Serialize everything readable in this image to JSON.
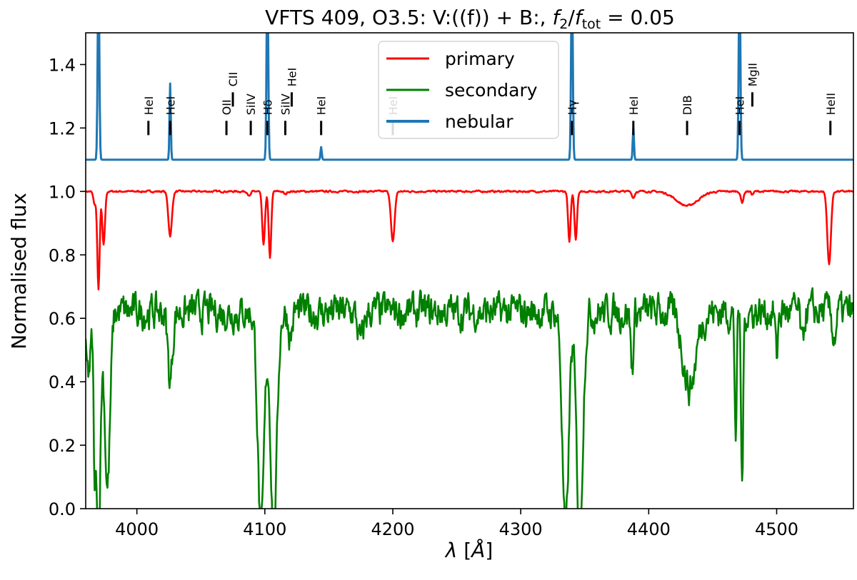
{
  "chart_data": {
    "type": "line",
    "title_parts": [
      "VFTS 409, O3.5: V:((f)) + B:, ",
      "f",
      "2",
      "/",
      "f",
      "tot",
      " = 0.05"
    ],
    "xlabel_parts": [
      "λ",
      " [",
      "Å",
      "]"
    ],
    "ylabel": "Normalised flux",
    "xlim": [
      3960,
      4560
    ],
    "ylim": [
      0.0,
      1.5
    ],
    "xticks": [
      4000,
      4100,
      4200,
      4300,
      4400,
      4500
    ],
    "yticks": [
      0.0,
      0.2,
      0.4,
      0.6,
      0.8,
      1.0,
      1.2,
      1.4
    ],
    "grid": false,
    "legend_position": "top-center",
    "nebular_baseline": 1.1,
    "line_markers": [
      {
        "label": "HeI",
        "x": 4009,
        "y": 1.2
      },
      {
        "label": "HeI",
        "x": 4026,
        "y": 1.2
      },
      {
        "label": "OII",
        "x": 4070,
        "y": 1.2
      },
      {
        "label": "CII",
        "x": 4075,
        "y": 1.29
      },
      {
        "label": "SiIV",
        "x": 4089,
        "y": 1.2
      },
      {
        "label": "Hδ",
        "x": 4102,
        "y": 1.2
      },
      {
        "label": "SiIV",
        "x": 4116,
        "y": 1.2
      },
      {
        "label": "HeI",
        "x": 4121,
        "y": 1.29
      },
      {
        "label": "HeI",
        "x": 4144,
        "y": 1.2
      },
      {
        "label": "HeI",
        "x": 4200,
        "y": 1.2
      },
      {
        "label": "Hγ",
        "x": 4340,
        "y": 1.2
      },
      {
        "label": "HeI",
        "x": 4388,
        "y": 1.2
      },
      {
        "label": "DIB",
        "x": 4430,
        "y": 1.2
      },
      {
        "label": "HeI",
        "x": 4471,
        "y": 1.2
      },
      {
        "label": "MgII",
        "x": 4481,
        "y": 1.29
      },
      {
        "label": "HeII",
        "x": 4542,
        "y": 1.2
      }
    ],
    "series": [
      {
        "name": "primary",
        "color": "#ff0000",
        "continuum": 1.0,
        "noise": 0.002,
        "absorptions": [
          {
            "x": 3967,
            "depth": 0.04,
            "width": 1.5
          },
          {
            "x": 3970,
            "depth": 0.31,
            "width": 1.3
          },
          {
            "x": 3974,
            "depth": 0.17,
            "width": 1.5
          },
          {
            "x": 4026,
            "depth": 0.14,
            "width": 2.0
          },
          {
            "x": 4088,
            "depth": 0.015,
            "width": 1.5
          },
          {
            "x": 4099,
            "depth": 0.17,
            "width": 1.5
          },
          {
            "x": 4104,
            "depth": 0.21,
            "width": 1.4
          },
          {
            "x": 4116,
            "depth": 0.01,
            "width": 1.5
          },
          {
            "x": 4200,
            "depth": 0.16,
            "width": 2.0
          },
          {
            "x": 4338,
            "depth": 0.16,
            "width": 1.4
          },
          {
            "x": 4343,
            "depth": 0.15,
            "width": 1.4
          },
          {
            "x": 4388,
            "depth": 0.02,
            "width": 1.5
          },
          {
            "x": 4430,
            "depth": 0.045,
            "width": 12
          },
          {
            "x": 4473,
            "depth": 0.035,
            "width": 1.5
          },
          {
            "x": 4481,
            "depth": 0.01,
            "width": 1.2
          },
          {
            "x": 4541,
            "depth": 0.23,
            "width": 2.0
          }
        ]
      },
      {
        "name": "secondary",
        "color": "#008000",
        "continuum": 0.62,
        "noise": 0.04,
        "absorptions": [
          {
            "x": 3962,
            "depth": 0.2,
            "width": 3.0
          },
          {
            "x": 3967,
            "depth": 0.45,
            "width": 1.2
          },
          {
            "x": 3970,
            "depth": 0.7,
            "width": 2.2
          },
          {
            "x": 3977,
            "depth": 0.55,
            "width": 3.0
          },
          {
            "x": 4026,
            "depth": 0.22,
            "width": 2.5
          },
          {
            "x": 4097,
            "depth": 0.7,
            "width": 3.5
          },
          {
            "x": 4107,
            "depth": 0.7,
            "width": 3.5
          },
          {
            "x": 4120,
            "depth": 0.08,
            "width": 2.0
          },
          {
            "x": 4175,
            "depth": 0.1,
            "width": 3.0
          },
          {
            "x": 4335,
            "depth": 0.7,
            "width": 3.5
          },
          {
            "x": 4346,
            "depth": 0.7,
            "width": 3.5
          },
          {
            "x": 4387,
            "depth": 0.18,
            "width": 1.5
          },
          {
            "x": 4432,
            "depth": 0.24,
            "width": 7.0
          },
          {
            "x": 4468,
            "depth": 0.38,
            "width": 1.2
          },
          {
            "x": 4473,
            "depth": 0.55,
            "width": 1.2
          },
          {
            "x": 4500,
            "depth": 0.15,
            "width": 1.2
          },
          {
            "x": 4520,
            "depth": 0.12,
            "width": 1.5
          },
          {
            "x": 4545,
            "depth": 0.08,
            "width": 2.0
          }
        ]
      },
      {
        "name": "nebular",
        "color": "#1f77b4",
        "continuum": 1.1,
        "noise": 0.0,
        "emissions": [
          {
            "x": 3970,
            "height": 0.6,
            "width": 0.9
          },
          {
            "x": 4026,
            "height": 0.24,
            "width": 0.7
          },
          {
            "x": 4102,
            "height": 0.6,
            "width": 0.9
          },
          {
            "x": 4144,
            "height": 0.04,
            "width": 0.7
          },
          {
            "x": 4340,
            "height": 0.6,
            "width": 0.9
          },
          {
            "x": 4388,
            "height": 0.1,
            "width": 0.7
          },
          {
            "x": 4471,
            "height": 0.6,
            "width": 0.9
          }
        ]
      }
    ]
  }
}
